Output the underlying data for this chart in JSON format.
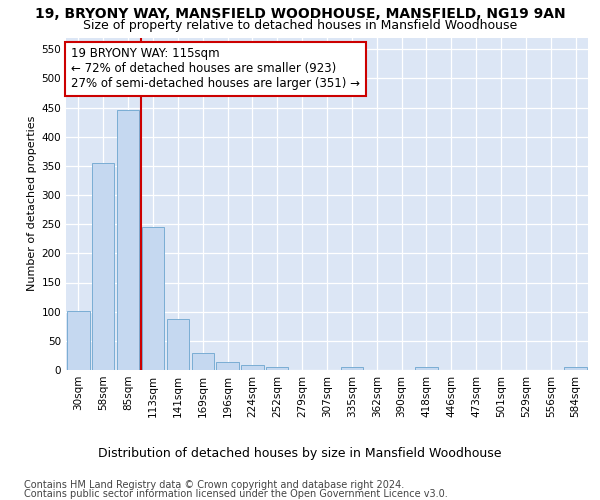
{
  "title": "19, BRYONY WAY, MANSFIELD WOODHOUSE, MANSFIELD, NG19 9AN",
  "subtitle": "Size of property relative to detached houses in Mansfield Woodhouse",
  "xlabel": "Distribution of detached houses by size in Mansfield Woodhouse",
  "ylabel": "Number of detached properties",
  "footnote1": "Contains HM Land Registry data © Crown copyright and database right 2024.",
  "footnote2": "Contains public sector information licensed under the Open Government Licence v3.0.",
  "bar_labels": [
    "30sqm",
    "58sqm",
    "85sqm",
    "113sqm",
    "141sqm",
    "169sqm",
    "196sqm",
    "224sqm",
    "252sqm",
    "279sqm",
    "307sqm",
    "335sqm",
    "362sqm",
    "390sqm",
    "418sqm",
    "446sqm",
    "473sqm",
    "501sqm",
    "529sqm",
    "556sqm",
    "584sqm"
  ],
  "bar_values": [
    102,
    355,
    445,
    246,
    88,
    30,
    13,
    9,
    5,
    0,
    0,
    5,
    0,
    0,
    5,
    0,
    0,
    0,
    0,
    0,
    5
  ],
  "bar_color": "#c5d8f0",
  "bar_edge_color": "#7aadd4",
  "vline_color": "#cc0000",
  "ylim": [
    0,
    570
  ],
  "yticks": [
    0,
    50,
    100,
    150,
    200,
    250,
    300,
    350,
    400,
    450,
    500,
    550
  ],
  "annotation_line1": "19 BRYONY WAY: 115sqm",
  "annotation_line2": "← 72% of detached houses are smaller (923)",
  "annotation_line3": "27% of semi-detached houses are larger (351) →",
  "annotation_box_color": "#ffffff",
  "annotation_border_color": "#cc0000",
  "fig_bg_color": "#ffffff",
  "axes_bg_color": "#dce6f5",
  "grid_color": "#ffffff",
  "title_fontsize": 10,
  "subtitle_fontsize": 9,
  "xlabel_fontsize": 9,
  "ylabel_fontsize": 8,
  "tick_fontsize": 7.5,
  "annot_fontsize": 8.5,
  "footnote_fontsize": 7
}
